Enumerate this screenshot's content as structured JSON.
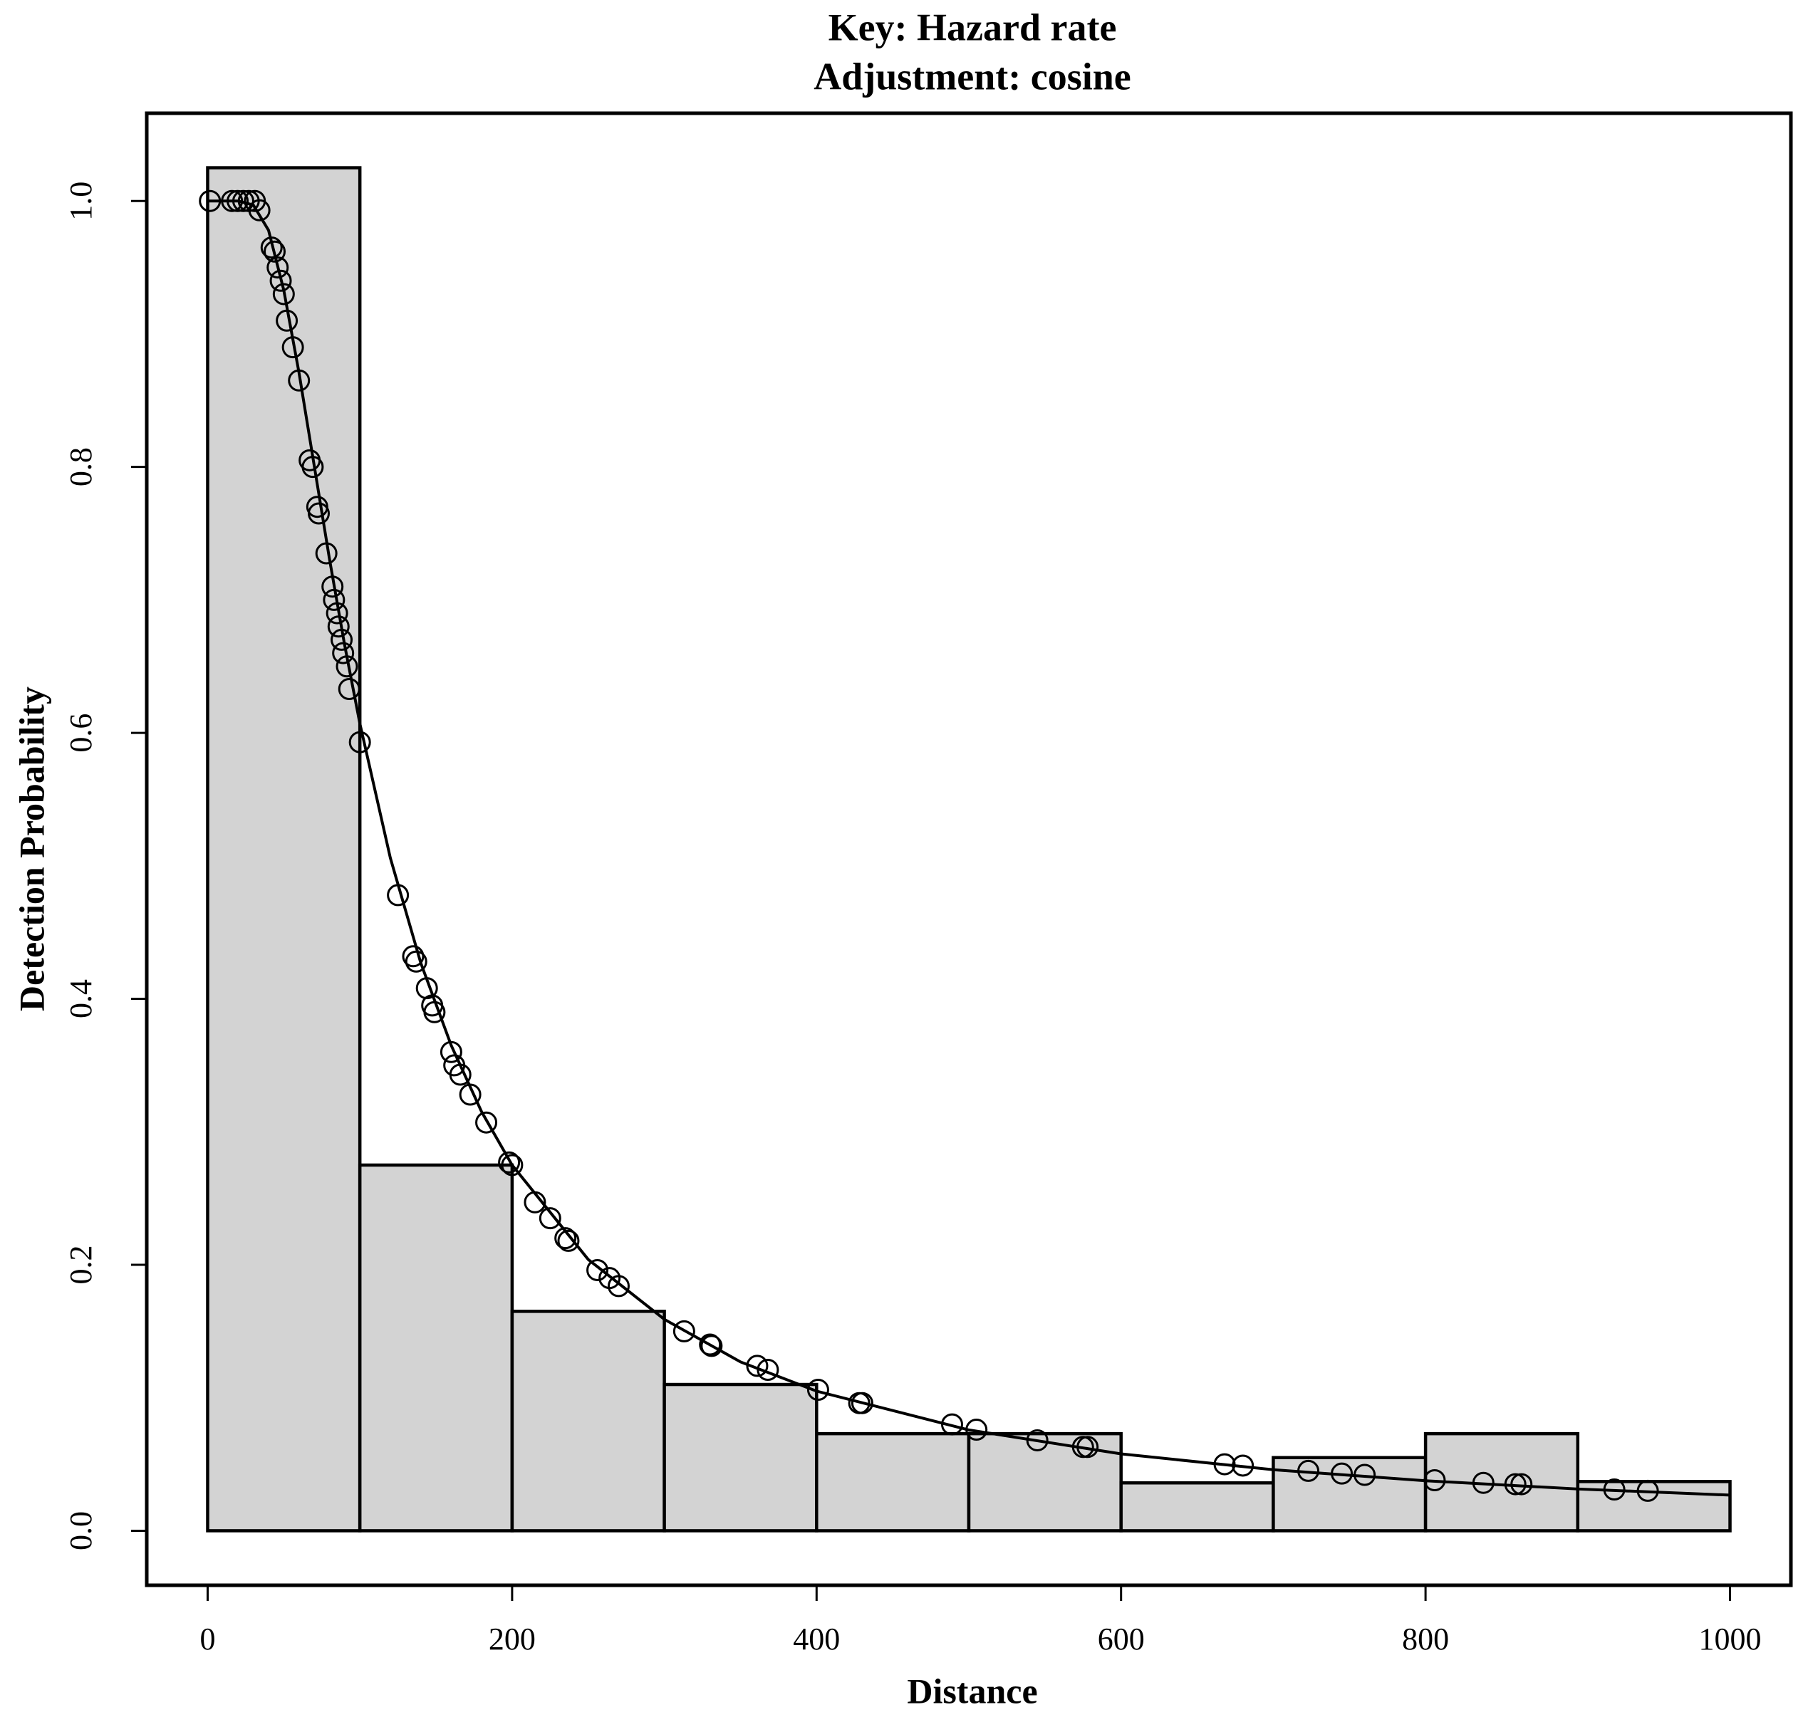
{
  "chart_data": [
    {
      "type": "histogram",
      "title": "Key: Hazard rate",
      "subtitle": "Adjustment: cosine",
      "xlabel": "Distance",
      "ylabel": "Detection Probability",
      "bins": [
        0,
        100,
        200,
        300,
        400,
        500,
        600,
        700,
        800,
        900,
        1000
      ],
      "values": [
        1.025,
        0.275,
        0.165,
        0.11,
        0.073,
        0.073,
        0.036,
        0.055,
        0.073,
        0.037
      ],
      "color": "#d3d3d3",
      "xlim": [
        -40,
        1040
      ],
      "ylim": [
        -0.041,
        1.066
      ],
      "xticks": [
        0,
        200,
        400,
        600,
        800,
        1000
      ],
      "yticks": [
        {
          "value": 0,
          "label": "0.0"
        },
        0.2,
        0.4,
        0.6,
        0.8,
        {
          "value": 1,
          "label": "1.0"
        }
      ]
    },
    {
      "type": "scatter",
      "color": "#000000",
      "x": [
        1.5,
        16,
        19.7,
        23.4,
        27,
        31,
        34,
        42,
        44,
        46,
        48,
        50,
        52,
        56,
        60,
        67,
        69,
        72,
        73,
        78,
        82,
        83,
        85,
        86,
        88,
        89,
        91.5,
        93,
        100,
        125,
        135,
        137,
        144,
        147.5,
        149,
        160,
        162,
        166,
        172.5,
        183,
        198,
        200,
        215,
        225,
        235,
        237,
        256,
        264,
        270,
        313,
        330,
        331,
        361,
        368,
        401,
        428,
        430,
        489,
        505,
        545,
        575,
        578,
        668,
        680,
        723,
        745,
        760,
        806,
        838,
        859,
        863,
        924,
        946
      ],
      "values": [
        1.0,
        1.0,
        1.0,
        1.0,
        1.0,
        1.0,
        0.993,
        0.965,
        0.962,
        0.95,
        0.94,
        0.93,
        0.91,
        0.89,
        0.865,
        0.805,
        0.8,
        0.77,
        0.765,
        0.735,
        0.71,
        0.7,
        0.69,
        0.68,
        0.67,
        0.66,
        0.65,
        0.633,
        0.593,
        0.478,
        0.432,
        0.428,
        0.408,
        0.395,
        0.39,
        0.36,
        0.35,
        0.343,
        0.328,
        0.307,
        0.277,
        0.275,
        0.247,
        0.235,
        0.22,
        0.218,
        0.196,
        0.19,
        0.184,
        0.15,
        0.14,
        0.139,
        0.124,
        0.121,
        0.106,
        0.096,
        0.096,
        0.08,
        0.076,
        0.068,
        0.063,
        0.063,
        0.05,
        0.049,
        0.045,
        0.043,
        0.042,
        0.038,
        0.036,
        0.035,
        0.035,
        0.031,
        0.03
      ]
    },
    {
      "type": "line",
      "color": "#000000",
      "x": [
        0,
        10,
        20,
        30,
        40,
        50,
        60,
        70,
        80,
        90,
        100,
        120,
        140,
        160,
        180,
        200,
        250,
        300,
        350,
        400,
        500,
        600,
        700,
        800,
        900,
        1000
      ],
      "values": [
        1.0,
        1.0,
        1.0,
        0.997,
        0.978,
        0.933,
        0.871,
        0.801,
        0.731,
        0.666,
        0.607,
        0.506,
        0.427,
        0.365,
        0.315,
        0.275,
        0.204,
        0.159,
        0.127,
        0.105,
        0.0758,
        0.0578,
        0.0459,
        0.0376,
        0.0314,
        0.0268
      ]
    }
  ]
}
